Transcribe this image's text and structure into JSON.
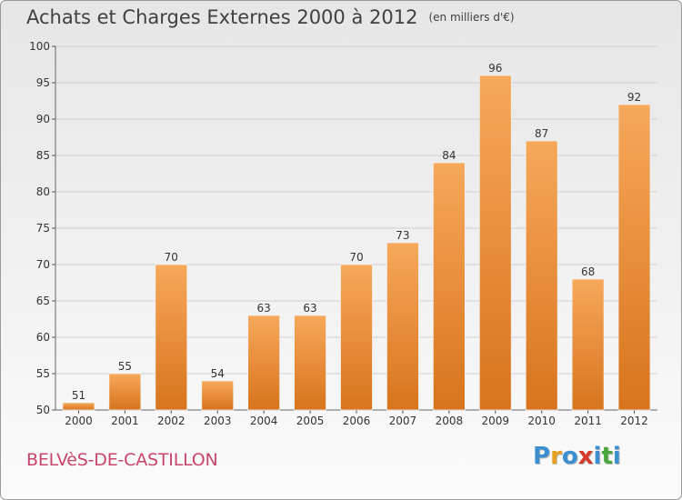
{
  "title": "Achats et Charges Externes 2000 à 2012",
  "unit_note": "(en milliers d'€)",
  "commune": "BELVèS-DE-CASTILLON",
  "logo": {
    "letters": [
      "P",
      "r",
      "o",
      "x",
      "i",
      "t",
      "i"
    ],
    "colors": [
      "#3b8fd0",
      "#e8a020",
      "#3b8fd0",
      "#d63a2a",
      "#3b8fd0",
      "#4aa63c",
      "#3b8fd0"
    ]
  },
  "colors": {
    "bar_top": "#f6a85a",
    "bar_bottom": "#d8741d",
    "grid": "#cfcfcf",
    "axis_text": "#333333",
    "title": "#404040",
    "commune": "#c8456a"
  },
  "chart_data": {
    "type": "bar",
    "categories": [
      "2000",
      "2001",
      "2002",
      "2003",
      "2004",
      "2005",
      "2006",
      "2007",
      "2008",
      "2009",
      "2010",
      "2011",
      "2012"
    ],
    "values": [
      51,
      55,
      70,
      54,
      63,
      63,
      70,
      73,
      84,
      96,
      87,
      68,
      92
    ],
    "data_labels": [
      "51",
      "55",
      "70",
      "54",
      "63",
      "63",
      "70",
      "73",
      "84",
      "96",
      "87",
      "68",
      "92"
    ],
    "y_ticks": [
      50,
      55,
      60,
      65,
      70,
      75,
      80,
      85,
      90,
      95,
      100
    ],
    "ylim": [
      50,
      100
    ],
    "title": "Achats et Charges Externes 2000 à 2012",
    "xlabel": "",
    "ylabel": "",
    "grid": true,
    "legend": "none"
  }
}
